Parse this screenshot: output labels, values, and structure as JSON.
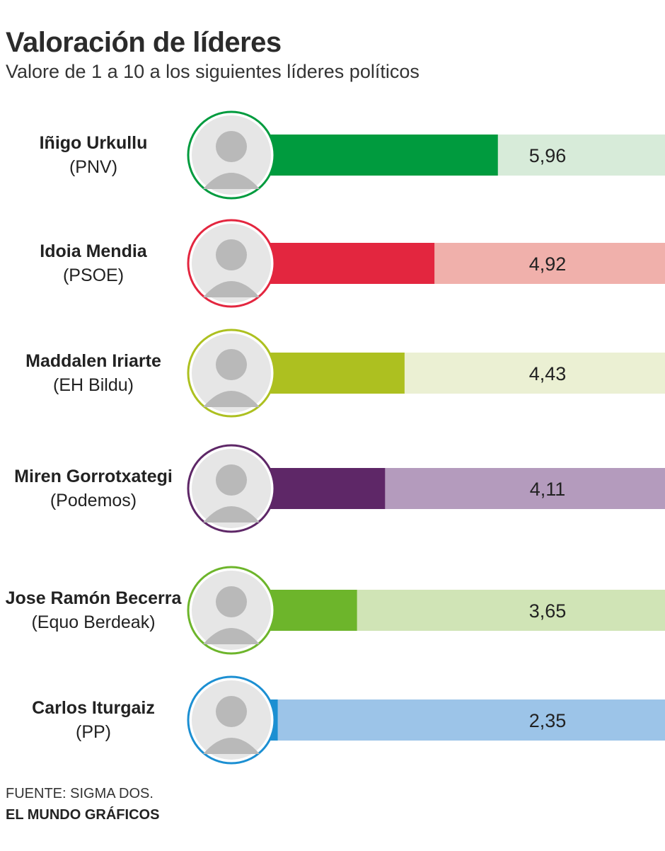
{
  "title": "Valoración de líderes",
  "subtitle": "Valore de 1 a 10 a los siguientes líderes políticos",
  "footer": {
    "source": "FUENTE: SIGMA DOS.",
    "credit": "EL MUNDO GRÁFICOS"
  },
  "chart_data": {
    "type": "bar",
    "orientation": "horizontal",
    "ylim": [
      0,
      10
    ],
    "categories": [
      "Iñigo Urkullu",
      "Idoia Mendia",
      "Maddalen Iriarte",
      "Miren Gorrotxategi",
      "Jose Ramón Becerra",
      "Carlos Iturgaiz"
    ],
    "parties": [
      "(PNV)",
      "(PSOE)",
      "(EH Bildu)",
      "(Podemos)",
      "(Equo Berdeak)",
      "(PP)"
    ],
    "values": [
      5.96,
      4.92,
      4.43,
      4.11,
      3.65,
      2.35
    ],
    "value_labels": [
      "5,96",
      "4,92",
      "4,43",
      "4,11",
      "3,65",
      "2,35"
    ],
    "colors": [
      "#009b3e",
      "#e3263f",
      "#adc020",
      "#5e2767",
      "#6db52b",
      "#1c8fd2"
    ],
    "track_colors": [
      "#d7ebd9",
      "#f0b0ab",
      "#ebf0d3",
      "#b49bbd",
      "#d0e4b6",
      "#9cc4e8"
    ]
  }
}
